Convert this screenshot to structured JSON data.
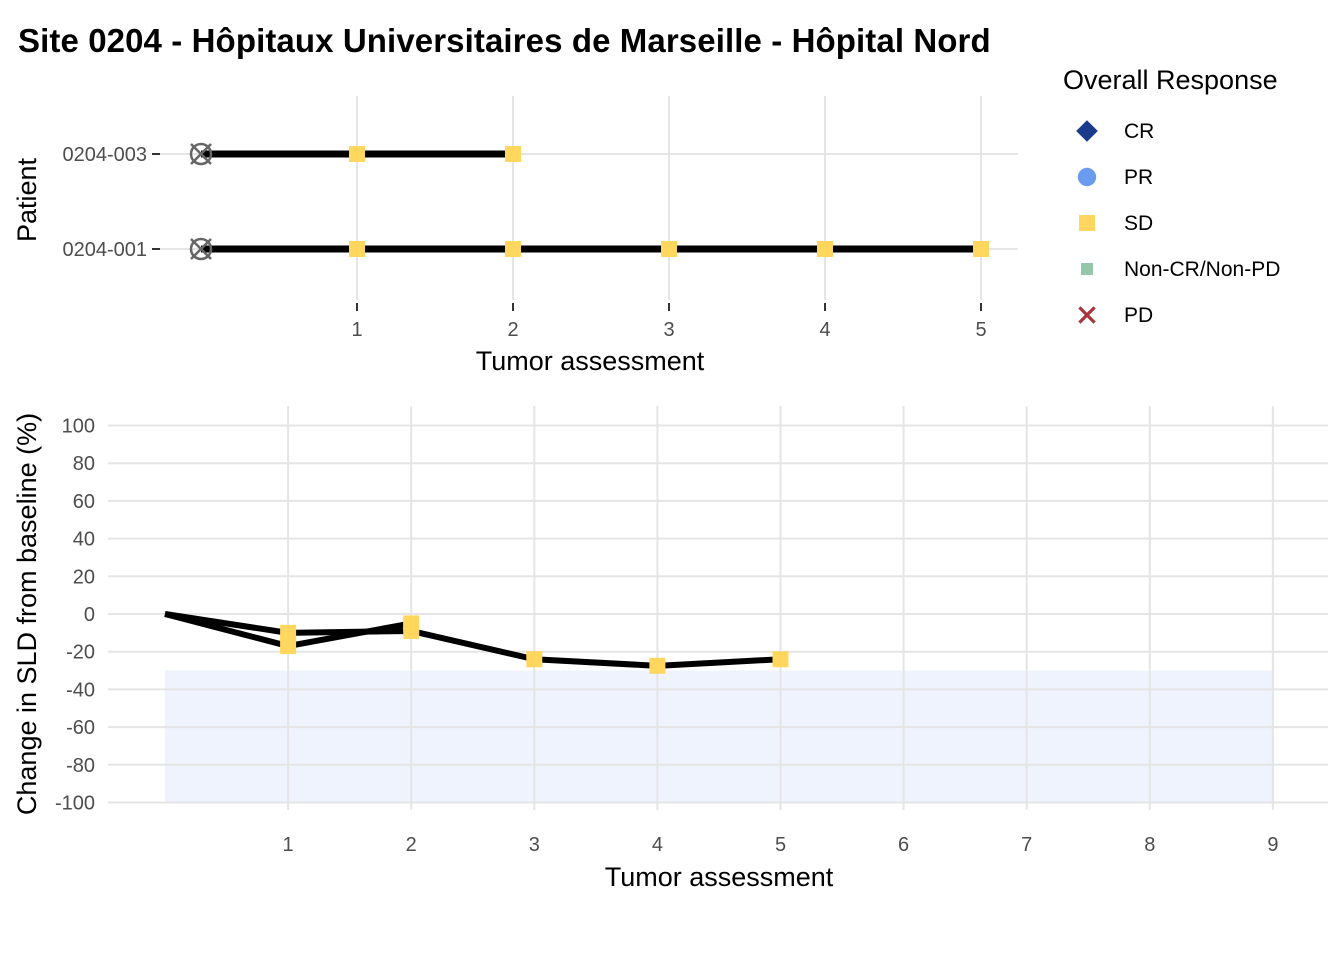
{
  "title": "Site 0204 - Hôpitaux Universitaires de Marseille - Hôpital Nord",
  "legend": {
    "title": "Overall Response",
    "items": [
      {
        "label": "CR",
        "color": "#1a3a8c",
        "shape": "diamond"
      },
      {
        "label": "PR",
        "color": "#6b9bef",
        "shape": "circle"
      },
      {
        "label": "SD",
        "color": "#ffd75e",
        "shape": "square"
      },
      {
        "label": "Non-CR/Non-PD",
        "color": "#92c7a9",
        "shape": "small-square"
      },
      {
        "label": "PD",
        "color": "#a8343c",
        "shape": "cross"
      }
    ]
  },
  "chart_data": [
    {
      "type": "timeline",
      "xlabel": "Tumor assessment",
      "ylabel": "Patient",
      "x_ticks": [
        1,
        2,
        3,
        4,
        5
      ],
      "xlim": [
        0,
        5.2
      ],
      "baseline_marker": "circle-x-icon",
      "patients": [
        {
          "id": "0204-003",
          "assessments": [
            1,
            2
          ],
          "responses": [
            "SD",
            "SD"
          ]
        },
        {
          "id": "0204-001",
          "assessments": [
            1,
            2,
            3,
            4,
            5
          ],
          "responses": [
            "SD",
            "SD",
            "SD",
            "SD",
            "SD"
          ]
        }
      ],
      "grid": true
    },
    {
      "type": "line",
      "xlabel": "Tumor assessment",
      "ylabel": "Change in SLD from baseline (%)",
      "x_ticks": [
        1,
        2,
        3,
        4,
        5,
        6,
        7,
        8,
        9
      ],
      "y_ticks": [
        100,
        80,
        60,
        40,
        20,
        0,
        -20,
        -40,
        -60,
        -80,
        -100
      ],
      "xlim": [
        0,
        9
      ],
      "ylim": [
        -100,
        100
      ],
      "shaded_region": {
        "x": [
          0,
          9
        ],
        "y": [
          -100,
          -30
        ],
        "color": "#eef3fd"
      },
      "series": [
        {
          "x": [
            0,
            1,
            2
          ],
          "y": [
            0,
            -17,
            -5
          ],
          "responses": [
            null,
            "SD",
            "SD"
          ]
        },
        {
          "x": [
            0,
            1,
            2,
            3,
            4,
            5
          ],
          "y": [
            0,
            -10,
            -9,
            -24,
            -27.5,
            -24
          ],
          "responses": [
            null,
            "SD",
            "SD",
            "SD",
            "SD",
            "SD"
          ]
        }
      ],
      "grid": true
    }
  ]
}
